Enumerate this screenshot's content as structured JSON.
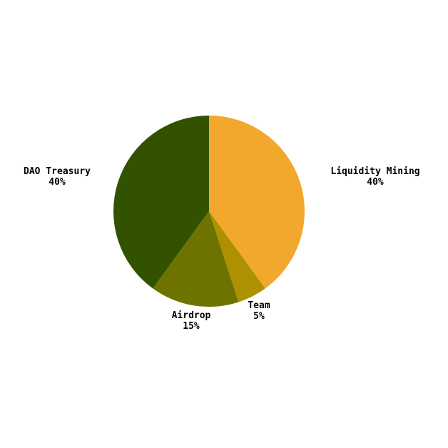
{
  "chart_data": {
    "type": "pie",
    "title": "",
    "slices": [
      {
        "label": "Liquidity Mining",
        "value_label": "40%",
        "value": 40,
        "color": "#F2A72D"
      },
      {
        "label": "Team",
        "value_label": "5%",
        "value": 5,
        "color": "#AD9100"
      },
      {
        "label": "Airdrop",
        "value_label": "15%",
        "value": 15,
        "color": "#6E7300"
      },
      {
        "label": "DAO Treasury",
        "value_label": "40%",
        "value": 40,
        "color": "#335200"
      }
    ],
    "start_angle": "12 o'clock",
    "direction": "clockwise",
    "legend": "none (labels beside slices)"
  }
}
